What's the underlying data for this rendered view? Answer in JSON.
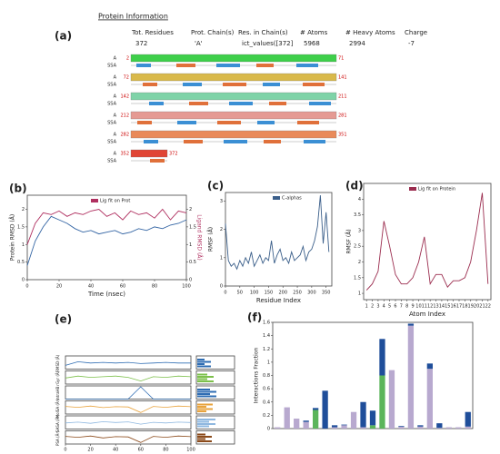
{
  "protein_info": {
    "label": "(a)",
    "title": "Protein Information",
    "headers": [
      "Tot. Residues",
      "Prot. Chain(s)",
      "Res. in Chain(s)",
      "# Atoms",
      "# Heavy Atoms",
      "Charge"
    ],
    "values": [
      "372",
      "'A'",
      "ict_values([372]",
      "5968",
      "2994",
      "-7"
    ],
    "track_labels": [
      "A",
      "SSA"
    ],
    "rows": [
      {
        "start": "2",
        "end": "71"
      },
      {
        "start": "72",
        "end": "141"
      },
      {
        "start": "142",
        "end": "211"
      },
      {
        "start": "212",
        "end": "281"
      },
      {
        "start": "282",
        "end": "351"
      },
      {
        "start": "352",
        "end": "372"
      }
    ]
  },
  "chart_data": [
    {
      "type": "line",
      "label": "(b)",
      "xlabel": "Time (nsec)",
      "ylabel": "Protein RMSD (Å)",
      "y2label": "Ligand RMSD (Å)",
      "x": [
        0,
        5,
        10,
        15,
        20,
        25,
        30,
        35,
        40,
        45,
        50,
        55,
        60,
        65,
        70,
        75,
        80,
        85,
        90,
        95,
        100
      ],
      "xlim": [
        0,
        100
      ],
      "xticks": [
        0,
        20,
        40,
        60,
        80,
        100
      ],
      "ylim": [
        0,
        2.4
      ],
      "yticks": [
        0,
        0.5,
        1,
        1.5,
        2
      ],
      "y2lim": [
        0,
        2.4
      ],
      "y2ticks": [
        0,
        0.5,
        1,
        1.5,
        2
      ],
      "series": [
        {
          "color": "#3465a4",
          "values": [
            0.4,
            1.1,
            1.5,
            1.8,
            1.7,
            1.6,
            1.45,
            1.35,
            1.4,
            1.3,
            1.35,
            1.4,
            1.3,
            1.35,
            1.45,
            1.4,
            1.5,
            1.45,
            1.55,
            1.6,
            1.7
          ]
        },
        {
          "name": "Lig fit on Prot",
          "color": "#b03060",
          "axis": "y2",
          "values": [
            1.0,
            1.6,
            1.9,
            1.85,
            1.95,
            1.8,
            1.9,
            1.85,
            1.95,
            2.0,
            1.8,
            1.9,
            1.7,
            1.95,
            1.85,
            1.9,
            1.75,
            2.0,
            1.7,
            1.95,
            1.9
          ]
        }
      ]
    },
    {
      "type": "line",
      "label": "(c)",
      "xlabel": "Residue Index",
      "ylabel": "RMSF (Å)",
      "x": [
        0,
        10,
        20,
        30,
        40,
        50,
        60,
        70,
        80,
        90,
        100,
        110,
        120,
        130,
        140,
        150,
        160,
        170,
        180,
        190,
        200,
        210,
        220,
        230,
        240,
        250,
        260,
        270,
        280,
        290,
        300,
        310,
        320,
        330,
        340,
        350,
        360
      ],
      "xlim": [
        0,
        370
      ],
      "xticks": [
        0,
        50,
        100,
        150,
        200,
        250,
        300,
        350
      ],
      "ylim": [
        0,
        3.3
      ],
      "yticks": [
        0,
        1,
        2,
        3
      ],
      "series": [
        {
          "name": "C-alphas",
          "color": "#3b5f8a",
          "values": [
            2.2,
            0.9,
            0.7,
            0.8,
            0.6,
            0.9,
            0.7,
            1.0,
            0.8,
            1.2,
            0.7,
            0.9,
            1.1,
            0.8,
            1.0,
            0.9,
            1.6,
            0.8,
            1.1,
            1.3,
            0.9,
            1.0,
            0.8,
            1.2,
            0.9,
            1.0,
            1.1,
            1.4,
            0.9,
            1.2,
            1.3,
            1.6,
            2.1,
            3.2,
            1.5,
            2.6,
            1.2
          ]
        }
      ]
    },
    {
      "type": "line",
      "label": "(d)",
      "xlabel": "Atom Index",
      "ylabel": "RMSF (Å)",
      "x": [
        1,
        2,
        3,
        4,
        5,
        6,
        7,
        8,
        9,
        10,
        11,
        12,
        13,
        14,
        15,
        16,
        17,
        18,
        19,
        20,
        21,
        22
      ],
      "xlim": [
        0.5,
        22.5
      ],
      "xticks": [
        1,
        2,
        3,
        4,
        5,
        6,
        7,
        8,
        9,
        10,
        11,
        12,
        13,
        14,
        15,
        16,
        17,
        18,
        19,
        20,
        21,
        22
      ],
      "ylim": [
        0.8,
        4.5
      ],
      "yticks": [
        1,
        1.5,
        2,
        2.5,
        3,
        3.5,
        4
      ],
      "series": [
        {
          "name": "Lig fit on Protein",
          "color": "#9b2d4f",
          "values": [
            1.1,
            1.3,
            1.7,
            3.3,
            2.5,
            1.6,
            1.3,
            1.3,
            1.5,
            2.0,
            2.8,
            1.3,
            1.6,
            1.6,
            1.2,
            1.4,
            1.4,
            1.5,
            2.0,
            3.0,
            4.2,
            1.3
          ]
        }
      ]
    },
    {
      "type": "strips",
      "label": "(e)",
      "x": [
        0,
        10,
        20,
        30,
        40,
        50,
        60,
        70,
        80,
        90,
        100
      ],
      "xlim": [
        0,
        100
      ],
      "xticks": [
        0,
        20,
        40,
        60,
        80,
        100
      ],
      "strips": [
        {
          "ylabel": "RMSD (Å)",
          "color": "#2f6db3",
          "ylim": [
            0,
            2
          ],
          "values": [
            0.6,
            1.2,
            1.0,
            1.1,
            1.0,
            1.1,
            0.9,
            1.0,
            1.1,
            1.0,
            1.0
          ]
        },
        {
          "ylabel": "rGyr (Å)",
          "color": "#7cc04b",
          "ylim": [
            3,
            5
          ],
          "values": [
            4.0,
            4.3,
            4.1,
            4.2,
            4.3,
            4.1,
            3.5,
            4.2,
            4.1,
            4.3,
            4.2
          ]
        },
        {
          "ylabel": "intraHB",
          "color": "#2f6db3",
          "ylim": [
            0,
            1
          ],
          "values": [
            0,
            0,
            0,
            0,
            0,
            0,
            1,
            0,
            0,
            0,
            0
          ]
        },
        {
          "ylabel": "MolSA (Å²)",
          "color": "#e8a33c",
          "ylim": [
            300,
            340
          ],
          "values": [
            325,
            322,
            326,
            321,
            324,
            323,
            305,
            325,
            322,
            326,
            324
          ]
        },
        {
          "ylabel": "SASA (Å²)",
          "color": "#8fb8e0",
          "ylim": [
            0,
            300
          ],
          "values": [
            150,
            170,
            140,
            180,
            160,
            175,
            120,
            165,
            150,
            170,
            160
          ]
        },
        {
          "ylabel": "PSA (Å²)",
          "color": "#8b4a1a",
          "ylim": [
            230,
            270
          ],
          "values": [
            255,
            252,
            256,
            250,
            254,
            253,
            235,
            255,
            252,
            256,
            254
          ]
        }
      ]
    },
    {
      "type": "stacked_bar",
      "label": "(f)",
      "ylabel": "Interactions Fraction",
      "ylim": [
        0,
        1.6
      ],
      "yticks": [
        0,
        0.2,
        0.4,
        0.6,
        0.8,
        1,
        1.2,
        1.4,
        1.6
      ],
      "series": [
        {
          "color": "#5bb55b",
          "values": [
            0,
            0,
            0,
            0,
            0.28,
            0,
            0,
            0,
            0,
            0,
            0.05,
            0.8,
            0,
            0,
            0,
            0,
            0,
            0,
            0,
            0,
            0
          ]
        },
        {
          "color": "#b8a9cf",
          "values": [
            0.02,
            0.32,
            0.15,
            0.1,
            0,
            0,
            0.02,
            0.05,
            0.25,
            0.02,
            0,
            0,
            0.88,
            0.03,
            1.55,
            0.03,
            0.9,
            0.01,
            0.02,
            0.02,
            0.03
          ]
        },
        {
          "color": "#1f4e9a",
          "values": [
            0,
            0,
            0,
            0.02,
            0.03,
            0.57,
            0.03,
            0.01,
            0,
            0.38,
            0.22,
            0.55,
            0,
            0.01,
            0.03,
            0.02,
            0.08,
            0.07,
            0,
            0,
            0.22
          ]
        }
      ]
    }
  ]
}
